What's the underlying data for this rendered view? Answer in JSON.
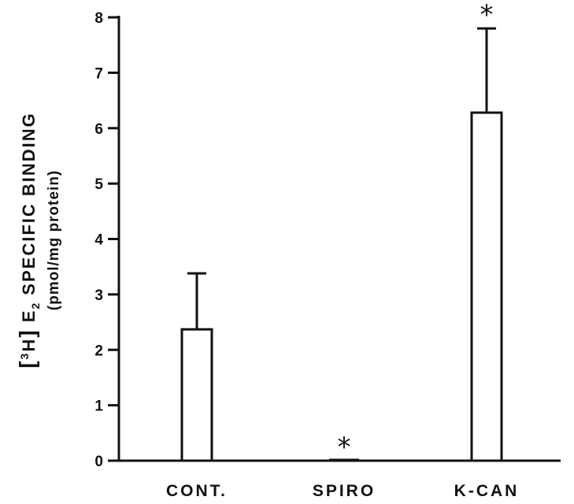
{
  "chart_data": {
    "type": "bar",
    "categories": [
      "CONT.",
      "SPIRO",
      "K-CAN"
    ],
    "values": [
      2.37,
      0.0,
      6.28
    ],
    "error_upper": [
      3.38,
      0.0,
      7.8
    ],
    "annotations": [
      "",
      "*",
      "*"
    ],
    "ylim": [
      0,
      8
    ],
    "yticks": [
      "0",
      "1",
      "2",
      "3",
      "4",
      "5",
      "6",
      "7",
      "8"
    ],
    "ylabel": {
      "bracket_open": "[",
      "superscript": "3",
      "isotope": "H",
      "bracket_close": "]",
      "species": "E",
      "subscript": "2",
      "text": "SPECIFIC BINDING",
      "units": "(pmol/mg protein)"
    },
    "xlabel": "",
    "title": "",
    "grid": false,
    "legend": "none",
    "bar_fill": "#ffffff",
    "stroke_color": "#111111"
  }
}
